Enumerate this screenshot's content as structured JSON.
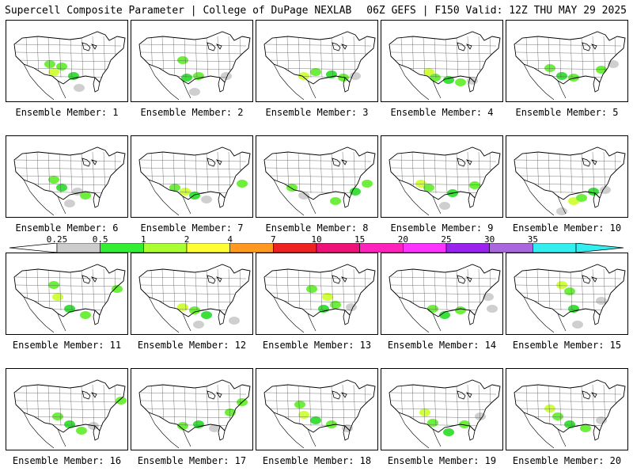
{
  "header": {
    "title": "Supercell Composite Parameter | College of DuPage NEXLAB",
    "valid": "06Z GEFS | F150 Valid: 12Z THU MAY 29 2025"
  },
  "members": [
    {
      "label": "Ensemble Member: 1",
      "blobs": [
        [
          55,
          55,
          "#66ee33"
        ],
        [
          60,
          65,
          "#ccff33"
        ],
        [
          70,
          58,
          "#66ee33"
        ],
        [
          85,
          70,
          "#33dd33"
        ],
        [
          92,
          85,
          "#cccccc"
        ]
      ]
    },
    {
      "label": "Ensemble Member: 2",
      "blobs": [
        [
          65,
          50,
          "#66ee33"
        ],
        [
          70,
          72,
          "#33dd33"
        ],
        [
          85,
          70,
          "#66ee33"
        ],
        [
          80,
          90,
          "#cccccc"
        ],
        [
          120,
          70,
          "#cccccc"
        ]
      ]
    },
    {
      "label": "Ensemble Member: 3",
      "blobs": [
        [
          60,
          70,
          "#ccff33"
        ],
        [
          75,
          65,
          "#66ee33"
        ],
        [
          95,
          68,
          "#33dd33"
        ],
        [
          110,
          72,
          "#66ee33"
        ],
        [
          125,
          70,
          "#cccccc"
        ]
      ]
    },
    {
      "label": "Ensemble Member: 4",
      "blobs": [
        [
          60,
          65,
          "#ccff33"
        ],
        [
          68,
          72,
          "#66ee33"
        ],
        [
          85,
          75,
          "#33dd33"
        ],
        [
          100,
          78,
          "#66ee33"
        ],
        [
          115,
          76,
          "#cccccc"
        ]
      ]
    },
    {
      "label": "Ensemble Member: 5",
      "blobs": [
        [
          55,
          60,
          "#66ee33"
        ],
        [
          70,
          70,
          "#33dd33"
        ],
        [
          85,
          72,
          "#66ee33"
        ],
        [
          120,
          62,
          "#66ee33"
        ],
        [
          135,
          55,
          "#cccccc"
        ]
      ]
    },
    {
      "label": "Ensemble Member: 6",
      "blobs": [
        [
          60,
          55,
          "#66ee33"
        ],
        [
          70,
          65,
          "#33dd33"
        ],
        [
          90,
          70,
          "#cccccc"
        ],
        [
          100,
          75,
          "#66ee33"
        ],
        [
          80,
          85,
          "#cccccc"
        ]
      ]
    },
    {
      "label": "Ensemble Member: 7",
      "blobs": [
        [
          55,
          65,
          "#66ee33"
        ],
        [
          68,
          70,
          "#ccff33"
        ],
        [
          80,
          75,
          "#33dd33"
        ],
        [
          95,
          80,
          "#cccccc"
        ],
        [
          140,
          60,
          "#66ee33"
        ]
      ]
    },
    {
      "label": "Ensemble Member: 8",
      "blobs": [
        [
          45,
          65,
          "#66ee33"
        ],
        [
          60,
          75,
          "#cccccc"
        ],
        [
          100,
          82,
          "#66ee33"
        ],
        [
          125,
          70,
          "#33dd33"
        ],
        [
          140,
          60,
          "#66ee33"
        ]
      ]
    },
    {
      "label": "Ensemble Member: 9",
      "blobs": [
        [
          50,
          60,
          "#ccff33"
        ],
        [
          60,
          65,
          "#66ee33"
        ],
        [
          90,
          72,
          "#33dd33"
        ],
        [
          118,
          62,
          "#66ee33"
        ],
        [
          80,
          88,
          "#cccccc"
        ]
      ]
    },
    {
      "label": "Ensemble Member: 10",
      "blobs": [
        [
          85,
          82,
          "#ccff33"
        ],
        [
          95,
          78,
          "#66ee33"
        ],
        [
          110,
          70,
          "#33dd33"
        ],
        [
          125,
          68,
          "#cccccc"
        ],
        [
          70,
          95,
          "#cccccc"
        ]
      ]
    },
    {
      "label": "Ensemble Member: 11",
      "blobs": [
        [
          60,
          40,
          "#66ee33"
        ],
        [
          65,
          55,
          "#ccff33"
        ],
        [
          80,
          70,
          "#33dd33"
        ],
        [
          100,
          78,
          "#66ee33"
        ],
        [
          140,
          45,
          "#66ee33"
        ]
      ]
    },
    {
      "label": "Ensemble Member: 12",
      "blobs": [
        [
          65,
          68,
          "#ccff33"
        ],
        [
          80,
          72,
          "#66ee33"
        ],
        [
          95,
          78,
          "#33dd33"
        ],
        [
          130,
          85,
          "#cccccc"
        ],
        [
          85,
          90,
          "#cccccc"
        ]
      ]
    },
    {
      "label": "Ensemble Member: 13",
      "blobs": [
        [
          70,
          45,
          "#66ee33"
        ],
        [
          90,
          55,
          "#ccff33"
        ],
        [
          100,
          65,
          "#66ee33"
        ],
        [
          85,
          70,
          "#33dd33"
        ],
        [
          120,
          68,
          "#cccccc"
        ]
      ]
    },
    {
      "label": "Ensemble Member: 14",
      "blobs": [
        [
          65,
          70,
          "#66ee33"
        ],
        [
          80,
          78,
          "#33dd33"
        ],
        [
          100,
          72,
          "#66ee33"
        ],
        [
          135,
          55,
          "#cccccc"
        ],
        [
          140,
          70,
          "#cccccc"
        ]
      ]
    },
    {
      "label": "Ensemble Member: 15",
      "blobs": [
        [
          70,
          40,
          "#ccff33"
        ],
        [
          80,
          48,
          "#66ee33"
        ],
        [
          85,
          70,
          "#33dd33"
        ],
        [
          90,
          90,
          "#cccccc"
        ],
        [
          120,
          60,
          "#cccccc"
        ]
      ]
    },
    {
      "label": "Ensemble Member: 16",
      "blobs": [
        [
          65,
          60,
          "#66ee33"
        ],
        [
          80,
          70,
          "#33dd33"
        ],
        [
          95,
          78,
          "#66ee33"
        ],
        [
          110,
          72,
          "#cccccc"
        ],
        [
          145,
          40,
          "#66ee33"
        ]
      ]
    },
    {
      "label": "Ensemble Member: 17",
      "blobs": [
        [
          65,
          72,
          "#66ee33"
        ],
        [
          85,
          70,
          "#33dd33"
        ],
        [
          105,
          75,
          "#cccccc"
        ],
        [
          125,
          55,
          "#66ee33"
        ],
        [
          140,
          42,
          "#66ee33"
        ]
      ]
    },
    {
      "label": "Ensemble Member: 18",
      "blobs": [
        [
          55,
          45,
          "#66ee33"
        ],
        [
          60,
          58,
          "#ccff33"
        ],
        [
          75,
          65,
          "#33dd33"
        ],
        [
          95,
          70,
          "#66ee33"
        ],
        [
          115,
          75,
          "#cccccc"
        ]
      ]
    },
    {
      "label": "Ensemble Member: 19",
      "blobs": [
        [
          55,
          55,
          "#ccff33"
        ],
        [
          65,
          68,
          "#66ee33"
        ],
        [
          85,
          80,
          "#33dd33"
        ],
        [
          105,
          70,
          "#66ee33"
        ],
        [
          125,
          60,
          "#cccccc"
        ]
      ]
    },
    {
      "label": "Ensemble Member: 20",
      "blobs": [
        [
          55,
          50,
          "#ccff33"
        ],
        [
          65,
          60,
          "#66ee33"
        ],
        [
          80,
          70,
          "#33dd33"
        ],
        [
          100,
          75,
          "#66ee33"
        ],
        [
          120,
          65,
          "#cccccc"
        ]
      ]
    }
  ],
  "legend": {
    "labels": [
      "0.25",
      "0.5",
      "1",
      "2",
      "4",
      "7",
      "10",
      "15",
      "20",
      "25",
      "30",
      "35"
    ],
    "colors": [
      "#cccccc",
      "#33ee33",
      "#aaff33",
      "#ffff33",
      "#ff9922",
      "#ee2222",
      "#ee1177",
      "#ff22bb",
      "#ff33ff",
      "#9922ee",
      "#aa66dd",
      "#33eeee"
    ]
  }
}
